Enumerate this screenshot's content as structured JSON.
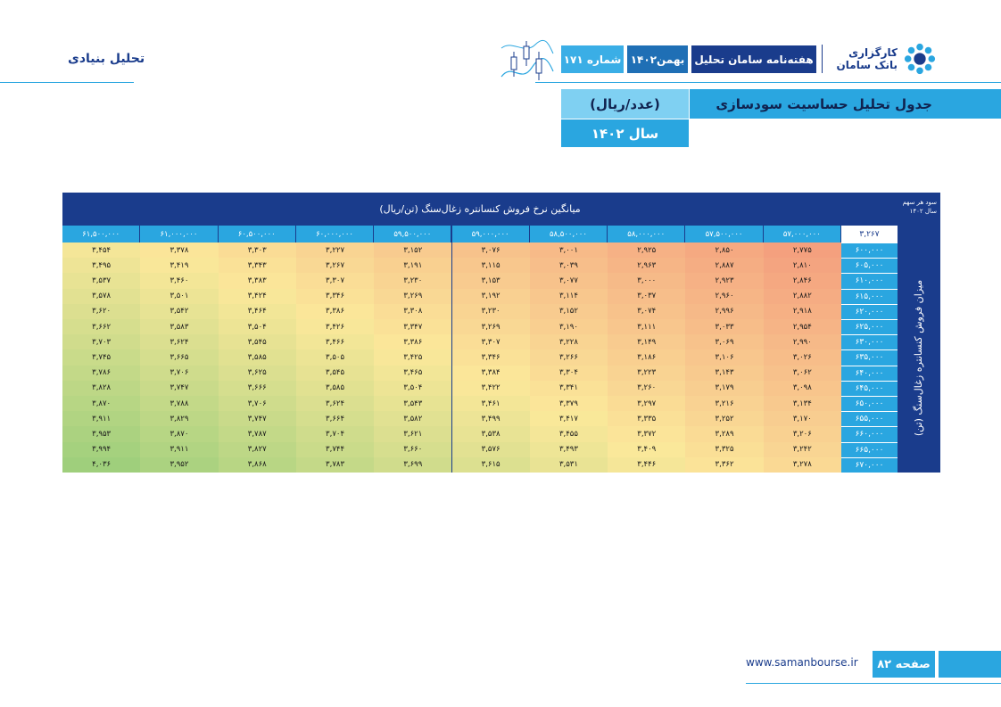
{
  "header": {
    "section_label": "تحلیل بنیادی",
    "brand_line1": "کارگزاری",
    "brand_line2": "بانک سامان",
    "publication": "هفته‌نامه سامان تحلیل",
    "month": "بهمن۱۴۰۲",
    "issue": "شماره ۱۷۱",
    "colors": {
      "navy": "#1a3c8c",
      "blue": "#2aa6e0",
      "light_blue": "#7fd0f2"
    },
    "icons": [
      "bank-saman-logo-icon",
      "candlestick-chart-icon"
    ]
  },
  "titles": {
    "main": "جدول تحلیل حساسیت سودسازی",
    "unit": "(عدد/ریال)",
    "year": "سال ۱۴۰۲"
  },
  "table": {
    "corner_line1": "سود هر سهم",
    "corner_line2": "سال ۱۴۰۲",
    "base_value": "۳,۲۶۷",
    "col_title": "میانگین نرخ فروش کنسانتره زغال‌سنگ (تن/ریال)",
    "row_title": "میزان فروش کنسانتره زغال‌سنگ (تن)",
    "columns": [
      "۵۷,۰۰۰,۰۰۰",
      "۵۷,۵۰۰,۰۰۰",
      "۵۸,۰۰۰,۰۰۰",
      "۵۸,۵۰۰,۰۰۰",
      "۵۹,۰۰۰,۰۰۰",
      "۵۹,۵۰۰,۰۰۰",
      "۶۰,۰۰۰,۰۰۰",
      "۶۰,۵۰۰,۰۰۰",
      "۶۱,۰۰۰,۰۰۰",
      "۶۱,۵۰۰,۰۰۰"
    ],
    "rows": [
      {
        "label": "۶۰۰,۰۰۰",
        "cells": [
          "۲,۷۷۵",
          "۲,۸۵۰",
          "۲,۹۲۵",
          "۳,۰۰۱",
          "۳,۰۷۶",
          "۳,۱۵۲",
          "۳,۲۲۷",
          "۳,۳۰۳",
          "۳,۳۷۸",
          "۳,۴۵۴"
        ]
      },
      {
        "label": "۶۰۵,۰۰۰",
        "cells": [
          "۲,۸۱۰",
          "۲,۸۸۷",
          "۲,۹۶۳",
          "۳,۰۳۹",
          "۳,۱۱۵",
          "۳,۱۹۱",
          "۳,۲۶۷",
          "۳,۳۴۳",
          "۳,۴۱۹",
          "۳,۴۹۵"
        ]
      },
      {
        "label": "۶۱۰,۰۰۰",
        "cells": [
          "۲,۸۴۶",
          "۲,۹۲۳",
          "۳,۰۰۰",
          "۳,۰۷۷",
          "۳,۱۵۳",
          "۳,۲۳۰",
          "۳,۳۰۷",
          "۳,۳۸۳",
          "۳,۴۶۰",
          "۳,۵۳۷"
        ]
      },
      {
        "label": "۶۱۵,۰۰۰",
        "cells": [
          "۲,۸۸۲",
          "۲,۹۶۰",
          "۳,۰۳۷",
          "۳,۱۱۴",
          "۳,۱۹۲",
          "۳,۲۶۹",
          "۳,۳۴۶",
          "۳,۴۲۴",
          "۳,۵۰۱",
          "۳,۵۷۸"
        ]
      },
      {
        "label": "۶۲۰,۰۰۰",
        "cells": [
          "۲,۹۱۸",
          "۲,۹۹۶",
          "۳,۰۷۴",
          "۳,۱۵۲",
          "۳,۲۳۰",
          "۳,۳۰۸",
          "۳,۳۸۶",
          "۳,۴۶۴",
          "۳,۵۴۲",
          "۳,۶۲۰"
        ]
      },
      {
        "label": "۶۲۵,۰۰۰",
        "cells": [
          "۲,۹۵۴",
          "۳,۰۳۳",
          "۳,۱۱۱",
          "۳,۱۹۰",
          "۳,۲۶۹",
          "۳,۳۴۷",
          "۳,۴۲۶",
          "۳,۵۰۴",
          "۳,۵۸۳",
          "۳,۶۶۲"
        ]
      },
      {
        "label": "۶۳۰,۰۰۰",
        "cells": [
          "۲,۹۹۰",
          "۳,۰۶۹",
          "۳,۱۴۹",
          "۳,۲۲۸",
          "۳,۳۰۷",
          "۳,۳۸۶",
          "۳,۴۶۶",
          "۳,۵۴۵",
          "۳,۶۲۴",
          "۳,۷۰۳"
        ]
      },
      {
        "label": "۶۳۵,۰۰۰",
        "cells": [
          "۳,۰۲۶",
          "۳,۱۰۶",
          "۳,۱۸۶",
          "۳,۲۶۶",
          "۳,۳۴۶",
          "۳,۴۲۵",
          "۳,۵۰۵",
          "۳,۵۸۵",
          "۳,۶۶۵",
          "۳,۷۴۵"
        ]
      },
      {
        "label": "۶۴۰,۰۰۰",
        "cells": [
          "۳,۰۶۲",
          "۳,۱۴۳",
          "۳,۲۲۳",
          "۳,۳۰۴",
          "۳,۳۸۴",
          "۳,۴۶۵",
          "۳,۵۴۵",
          "۳,۶۲۵",
          "۳,۷۰۶",
          "۳,۷۸۶"
        ]
      },
      {
        "label": "۶۴۵,۰۰۰",
        "cells": [
          "۳,۰۹۸",
          "۳,۱۷۹",
          "۳,۲۶۰",
          "۳,۳۴۱",
          "۳,۴۲۲",
          "۳,۵۰۴",
          "۳,۵۸۵",
          "۳,۶۶۶",
          "۳,۷۴۷",
          "۳,۸۲۸"
        ]
      },
      {
        "label": "۶۵۰,۰۰۰",
        "cells": [
          "۳,۱۳۴",
          "۳,۲۱۶",
          "۳,۲۹۷",
          "۳,۳۷۹",
          "۳,۴۶۱",
          "۳,۵۴۳",
          "۳,۶۲۴",
          "۳,۷۰۶",
          "۳,۷۸۸",
          "۳,۸۷۰"
        ]
      },
      {
        "label": "۶۵۵,۰۰۰",
        "cells": [
          "۳,۱۷۰",
          "۳,۲۵۲",
          "۳,۳۳۵",
          "۳,۴۱۷",
          "۳,۴۹۹",
          "۳,۵۸۲",
          "۳,۶۶۴",
          "۳,۷۴۷",
          "۳,۸۲۹",
          "۳,۹۱۱"
        ]
      },
      {
        "label": "۶۶۰,۰۰۰",
        "cells": [
          "۳,۲۰۶",
          "۳,۲۸۹",
          "۳,۳۷۲",
          "۳,۴۵۵",
          "۳,۵۳۸",
          "۳,۶۲۱",
          "۳,۷۰۴",
          "۳,۷۸۷",
          "۳,۸۷۰",
          "۳,۹۵۳"
        ]
      },
      {
        "label": "۶۶۵,۰۰۰",
        "cells": [
          "۳,۲۴۲",
          "۳,۳۲۵",
          "۳,۴۰۹",
          "۳,۴۹۳",
          "۳,۵۷۶",
          "۳,۶۶۰",
          "۳,۷۴۴",
          "۳,۸۲۷",
          "۳,۹۱۱",
          "۳,۹۹۴"
        ]
      },
      {
        "label": "۶۷۰,۰۰۰",
        "cells": [
          "۳,۲۷۸",
          "۳,۳۶۲",
          "۳,۴۴۶",
          "۳,۵۳۱",
          "۳,۶۱۵",
          "۳,۶۹۹",
          "۳,۷۸۳",
          "۳,۸۶۸",
          "۳,۹۵۲",
          "۴,۰۳۶"
        ]
      }
    ],
    "heat_colors": {
      "low": "#f4a07e",
      "mid": "#fbe89a",
      "high": "#9fcf7c"
    }
  },
  "footer": {
    "website": "www.samanbourse.ir",
    "page": "صفحه ۸۲"
  }
}
